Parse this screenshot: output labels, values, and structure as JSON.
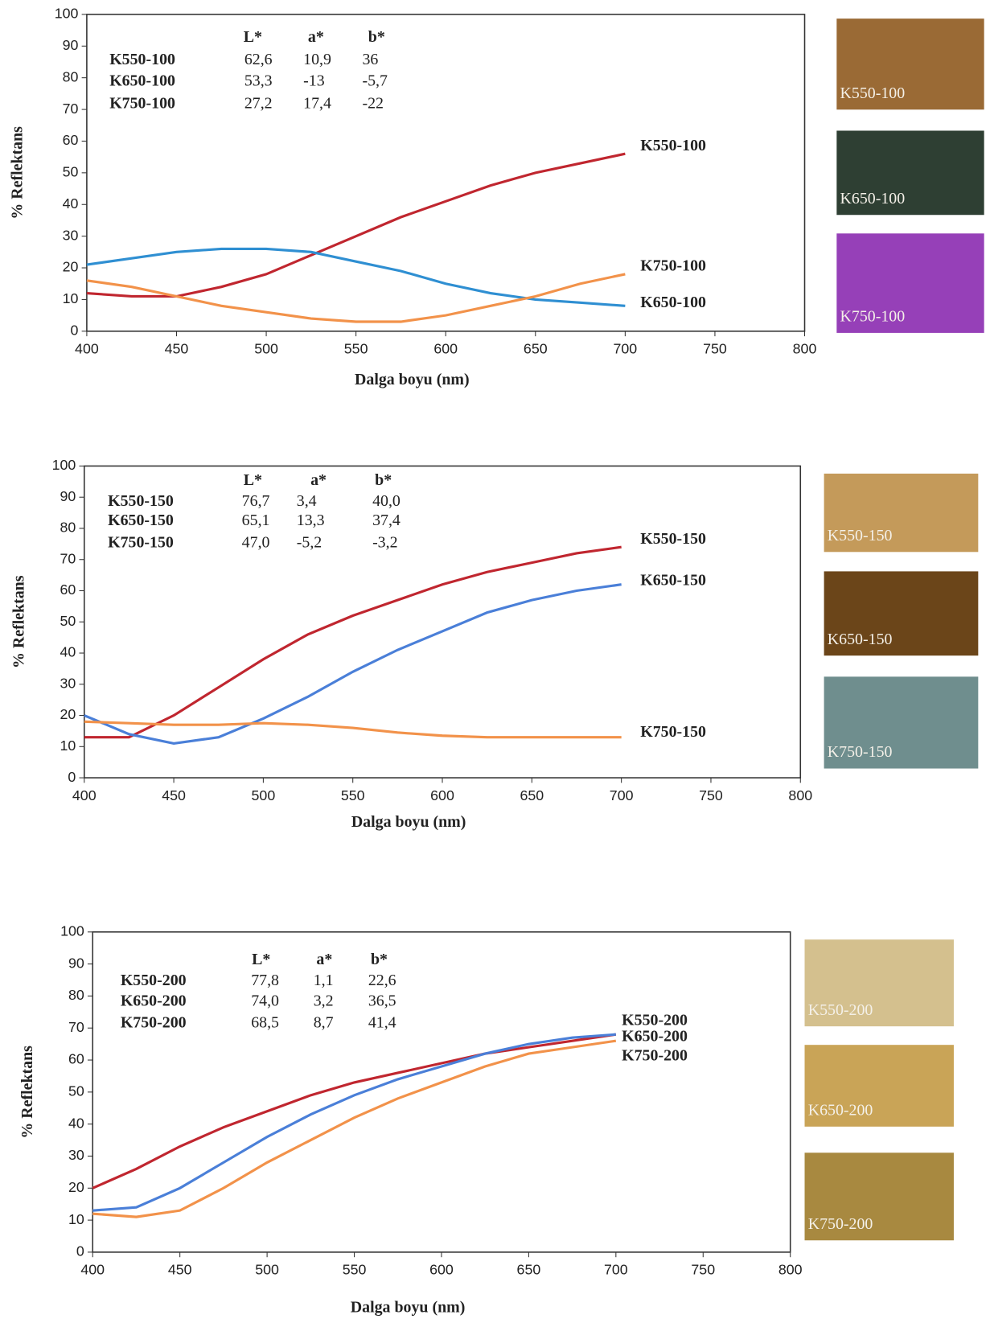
{
  "chart_data": [
    {
      "type": "line",
      "xlabel": "Dalga boyu (nm)",
      "ylabel": "% Reflektans",
      "x": [
        400,
        425,
        450,
        475,
        500,
        525,
        550,
        575,
        600,
        625,
        650,
        675,
        700
      ],
      "series": [
        {
          "name": "K550-100",
          "color": "#c0262f",
          "swatch": "#9a6a35",
          "values": [
            12,
            11,
            11,
            14,
            18,
            24,
            30,
            36,
            41,
            46,
            50,
            53,
            56
          ]
        },
        {
          "name": "K650-100",
          "color": "#2f8fd2",
          "swatch": "#2e3f33",
          "values": [
            21,
            23,
            25,
            26,
            26,
            25,
            22,
            19,
            15,
            12,
            10,
            9,
            8
          ]
        },
        {
          "name": "K750-100",
          "color": "#f2924a",
          "swatch": "#9640b8",
          "values": [
            16,
            14,
            11,
            8,
            6,
            4,
            3,
            3,
            5,
            8,
            11,
            15,
            18
          ]
        }
      ],
      "xlim": [
        400,
        800
      ],
      "ylim": [
        0,
        100
      ],
      "xticks": [
        400,
        450,
        500,
        550,
        600,
        650,
        700,
        750,
        800
      ],
      "yticks": [
        0,
        10,
        20,
        30,
        40,
        50,
        60,
        70,
        80,
        90,
        100
      ],
      "table": {
        "columns": [
          "L*",
          "a*",
          "b*"
        ],
        "rows": [
          [
            "62,6",
            "10,9",
            "36"
          ],
          [
            "53,3",
            "-13",
            "-5,7"
          ],
          [
            "27,2",
            "17,4",
            "-22"
          ]
        ]
      }
    },
    {
      "type": "line",
      "xlabel": "Dalga boyu (nm)",
      "ylabel": "% Reflektans",
      "x": [
        400,
        425,
        450,
        475,
        500,
        525,
        550,
        575,
        600,
        625,
        650,
        675,
        700
      ],
      "series": [
        {
          "name": "K550-150",
          "color": "#c0262f",
          "swatch": "#c49a5a",
          "values": [
            13,
            13,
            20,
            29,
            38,
            46,
            52,
            57,
            62,
            66,
            69,
            72,
            74
          ]
        },
        {
          "name": "K650-150",
          "color": "#4a7fd8",
          "swatch": "#6b4519",
          "values": [
            20,
            14,
            11,
            13,
            19,
            26,
            34,
            41,
            47,
            53,
            57,
            60,
            62
          ]
        },
        {
          "name": "K750-150",
          "color": "#f2924a",
          "swatch": "#6f8e8e",
          "values": [
            18,
            17.5,
            17,
            17,
            17.5,
            17,
            16,
            14.5,
            13.5,
            13,
            13,
            13,
            13
          ]
        }
      ],
      "xlim": [
        400,
        800
      ],
      "ylim": [
        0,
        100
      ],
      "xticks": [
        400,
        450,
        500,
        550,
        600,
        650,
        700,
        750,
        800
      ],
      "yticks": [
        0,
        10,
        20,
        30,
        40,
        50,
        60,
        70,
        80,
        90,
        100
      ],
      "table": {
        "columns": [
          "L*",
          "a*",
          "b*"
        ],
        "rows": [
          [
            "76,7",
            "3,4",
            "40,0"
          ],
          [
            "65,1",
            "13,3",
            "37,4"
          ],
          [
            "47,0",
            "-5,2",
            "-3,2"
          ]
        ]
      }
    },
    {
      "type": "line",
      "xlabel": "Dalga boyu (nm)",
      "ylabel": "% Reflektans",
      "x": [
        400,
        425,
        450,
        475,
        500,
        525,
        550,
        575,
        600,
        625,
        650,
        675,
        700
      ],
      "series": [
        {
          "name": "K550-200",
          "color": "#c0262f",
          "swatch": "#d4c08e",
          "values": [
            20,
            26,
            33,
            39,
            44,
            49,
            53,
            56,
            59,
            62,
            64,
            66,
            68
          ]
        },
        {
          "name": "K650-200",
          "color": "#4a7fd8",
          "swatch": "#c9a457",
          "values": [
            13,
            14,
            20,
            28,
            36,
            43,
            49,
            54,
            58,
            62,
            65,
            67,
            68
          ]
        },
        {
          "name": "K750-200",
          "color": "#f2924a",
          "swatch": "#a88940",
          "values": [
            12,
            11,
            13,
            20,
            28,
            35,
            42,
            48,
            53,
            58,
            62,
            64,
            66
          ]
        }
      ],
      "xlim": [
        400,
        800
      ],
      "ylim": [
        0,
        100
      ],
      "xticks": [
        400,
        450,
        500,
        550,
        600,
        650,
        700,
        750,
        800
      ],
      "yticks": [
        0,
        10,
        20,
        30,
        40,
        50,
        60,
        70,
        80,
        90,
        100
      ],
      "table": {
        "columns": [
          "L*",
          "a*",
          "b*"
        ],
        "rows": [
          [
            "77,8",
            "1,1",
            "22,6"
          ],
          [
            "74,0",
            "3,2",
            "36,5"
          ],
          [
            "68,5",
            "8,7",
            "41,4"
          ]
        ]
      }
    }
  ]
}
